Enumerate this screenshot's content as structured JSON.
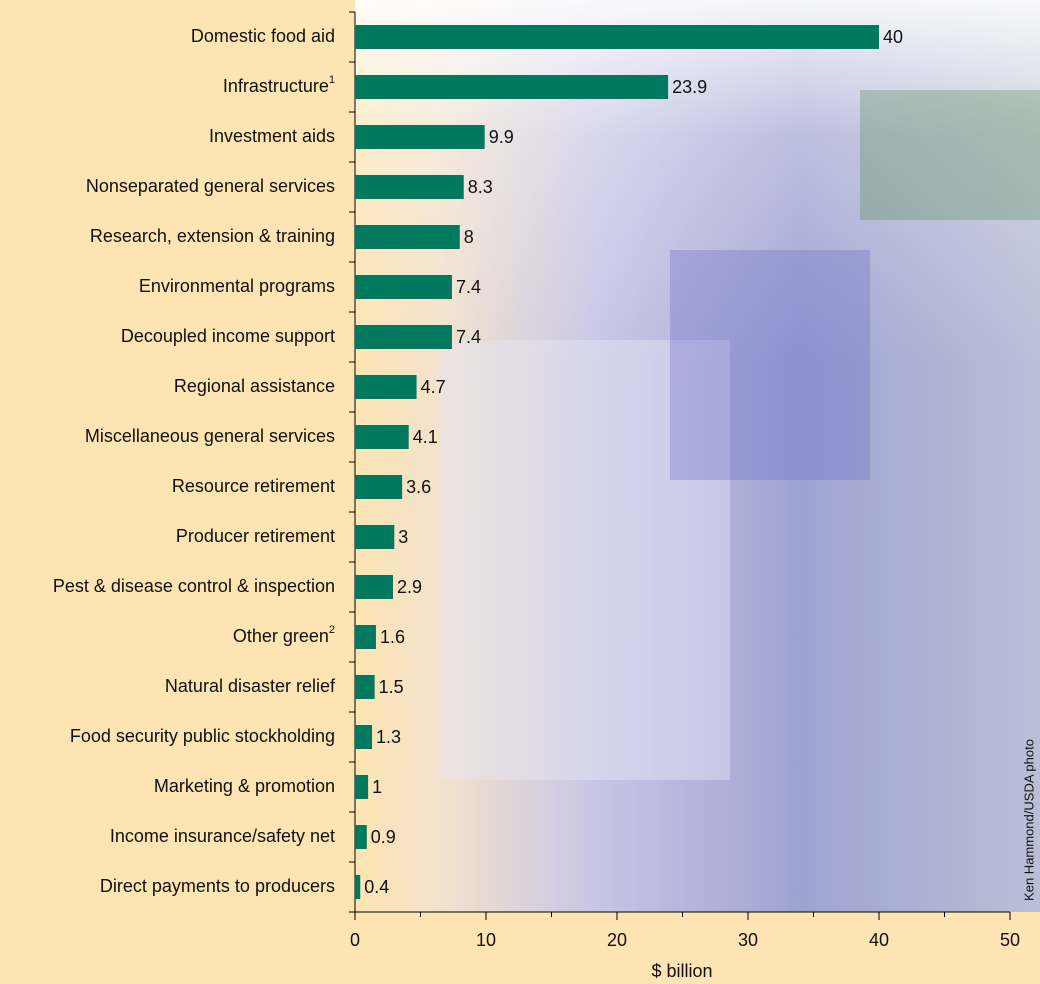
{
  "chart_data": {
    "type": "barh",
    "categories": [
      "Domestic food aid",
      "Infrastructure",
      "Investment aids",
      "Nonseparated general services",
      "Research, extension & training",
      "Environmental programs",
      "Decoupled income support",
      "Regional assistance",
      "Miscellaneous general services",
      "Resource retirement",
      "Producer retirement",
      "Pest & disease control & inspection",
      "Other green",
      "Natural disaster relief",
      "Food security public stockholding",
      "Marketing & promotion",
      "Income insurance/safety net",
      "Direct payments to producers"
    ],
    "category_footnotes": [
      null,
      "1",
      null,
      null,
      null,
      null,
      null,
      null,
      null,
      null,
      null,
      null,
      "2",
      null,
      null,
      null,
      null,
      null
    ],
    "values": [
      40,
      23.9,
      9.9,
      8.3,
      8,
      7.4,
      7.4,
      4.7,
      4.1,
      3.6,
      3,
      2.9,
      1.6,
      1.5,
      1.3,
      1,
      0.9,
      0.4
    ],
    "color": "#00795f",
    "xlabel": "$ billion",
    "xlim": [
      0,
      50
    ],
    "xticks": [
      0,
      10,
      20,
      30,
      40,
      50
    ],
    "xminorticks": [
      5,
      15,
      25,
      35,
      45
    ],
    "credit": "Ken Hammond/USDA photo"
  }
}
